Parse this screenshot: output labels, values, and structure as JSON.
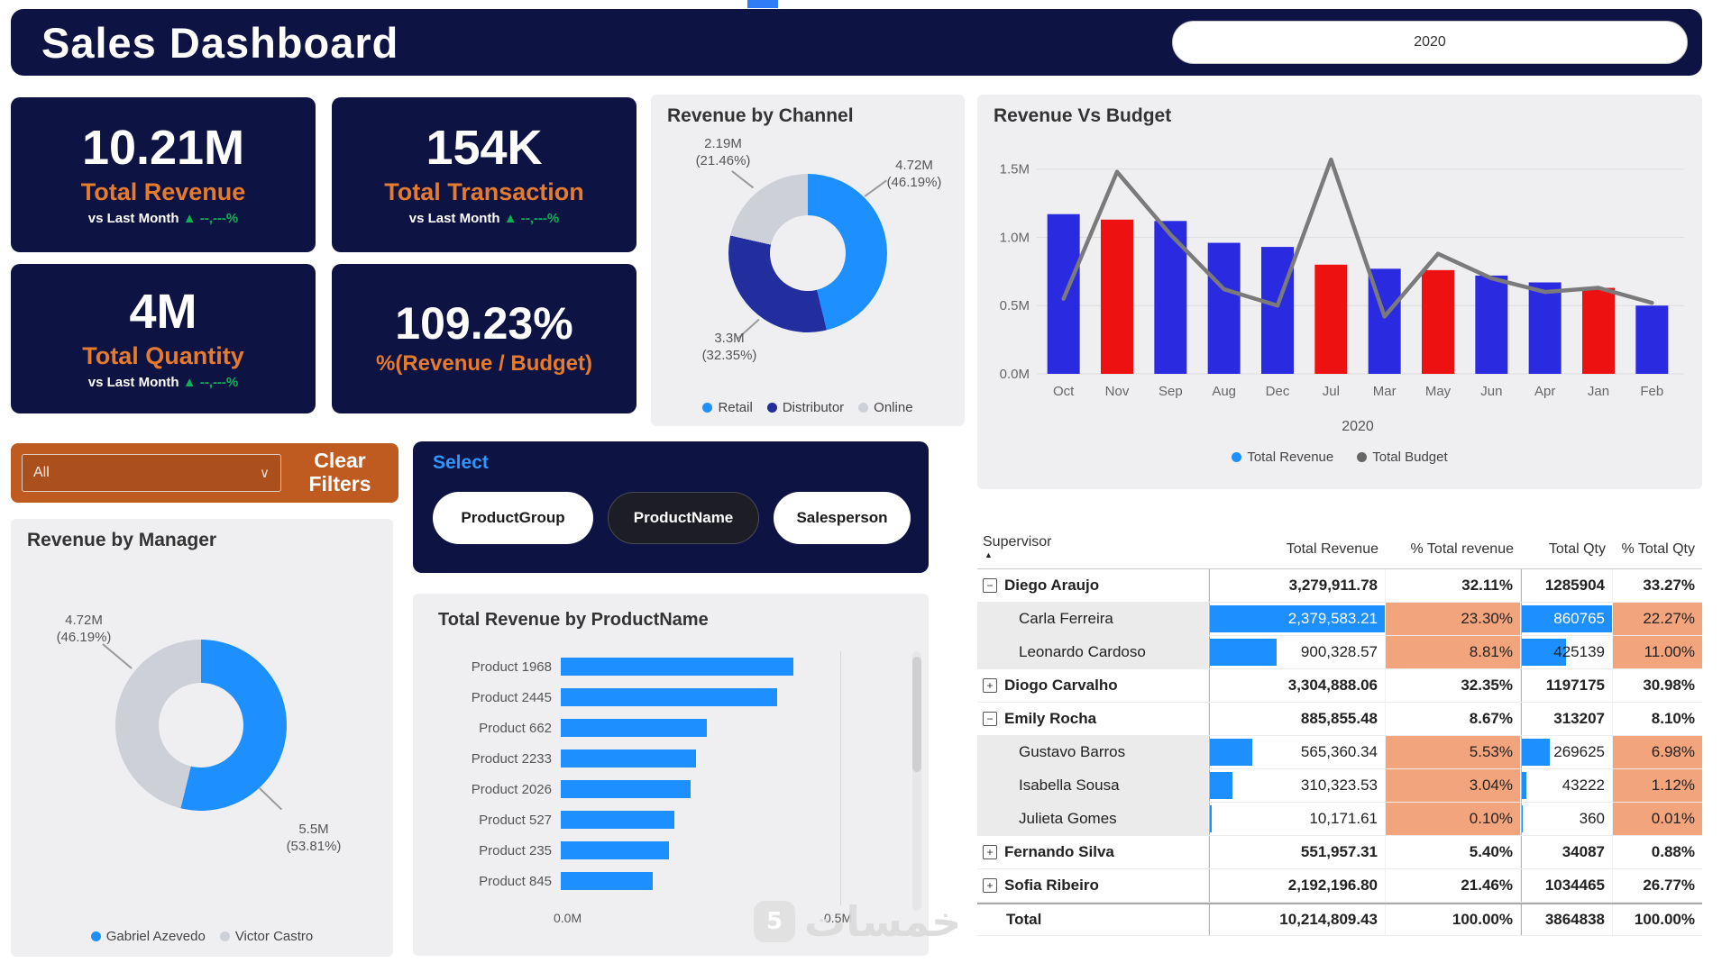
{
  "header": {
    "title": "Sales Dashboard",
    "year_filter": "2020"
  },
  "kpis": [
    {
      "value": "10.21M",
      "label": "Total Revenue",
      "compare": "vs Last Month",
      "delta_arrow": "▲",
      "delta": "--,---%"
    },
    {
      "value": "154K",
      "label": "Total Transaction",
      "compare": "vs Last Month",
      "delta_arrow": "▲",
      "delta": "--,---%"
    },
    {
      "value": "4M",
      "label": "Total Quantity",
      "compare": "vs Last Month",
      "delta_arrow": "▲",
      "delta": "--,---%"
    },
    {
      "value": "109.23%",
      "label": "%(Revenue / Budget)"
    }
  ],
  "filters": {
    "dropdown_value": "All",
    "dropdown_chevron": "∨",
    "clear_button": "Clear Filters",
    "select_title": "Select",
    "slicer_buttons": [
      {
        "label": "ProductGroup",
        "selected": false
      },
      {
        "label": "ProductName",
        "selected": true
      },
      {
        "label": "Salesperson",
        "selected": false
      }
    ]
  },
  "chart_data": [
    {
      "id": "revenue-by-channel",
      "type": "pie",
      "title": "Revenue by Channel",
      "labels": [
        "Retail",
        "Distributor",
        "Online"
      ],
      "values_m": [
        4.72,
        3.3,
        2.19
      ],
      "percents": [
        46.19,
        32.35,
        21.46
      ],
      "callouts": [
        "4.72M\n(46.19%)",
        "3.3M\n(32.35%)",
        "2.19M\n(21.46%)"
      ],
      "colors": [
        "#1e8fff",
        "#222e9e",
        "#cdd0d6"
      ]
    },
    {
      "id": "revenue-vs-budget",
      "type": "bar+line",
      "title": "Revenue Vs Budget",
      "categories": [
        "Oct",
        "Nov",
        "Sep",
        "Aug",
        "Dec",
        "Jul",
        "Mar",
        "May",
        "Jun",
        "Apr",
        "Jan",
        "Feb"
      ],
      "series": [
        {
          "name": "Total Revenue",
          "type": "bar",
          "values_m": [
            1.17,
            1.13,
            1.12,
            0.96,
            0.93,
            0.8,
            0.77,
            0.76,
            0.72,
            0.67,
            0.63,
            0.5
          ],
          "bar_colors": [
            "#2a2ae0",
            "#ee1111",
            "#2a2ae0",
            "#2a2ae0",
            "#2a2ae0",
            "#ee1111",
            "#2a2ae0",
            "#ee1111",
            "#2a2ae0",
            "#2a2ae0",
            "#ee1111",
            "#2a2ae0"
          ]
        },
        {
          "name": "Total Budget",
          "type": "line",
          "values_m": [
            0.55,
            1.48,
            1.02,
            0.62,
            0.5,
            1.57,
            0.42,
            0.88,
            0.7,
            0.6,
            0.63,
            0.52
          ],
          "color": "#7a7a7a"
        }
      ],
      "xlabel": "2020",
      "yticks": [
        "0.0M",
        "0.5M",
        "1.0M",
        "1.5M"
      ],
      "ylim_m": [
        0,
        1.65
      ],
      "legend": [
        "Total Revenue",
        "Total Budget"
      ],
      "legend_colors": [
        "#1e8fff",
        "#666666"
      ]
    },
    {
      "id": "revenue-by-manager",
      "type": "pie",
      "title": "Revenue by Manager",
      "labels": [
        "Gabriel Azevedo",
        "Victor Castro"
      ],
      "values_m": [
        5.5,
        4.72
      ],
      "percents": [
        53.81,
        46.19
      ],
      "callouts": [
        "5.5M\n(53.81%)",
        "4.72M\n(46.19%)"
      ],
      "colors": [
        "#1e8fff",
        "#cdd0d6"
      ]
    },
    {
      "id": "revenue-by-productname",
      "type": "bar",
      "title": "Total Revenue by ProductName",
      "categories": [
        "Product 1968",
        "Product 2445",
        "Product 662",
        "Product 2233",
        "Product 2026",
        "Product 527",
        "Product 235",
        "Product 845"
      ],
      "values_m": [
        0.43,
        0.4,
        0.27,
        0.25,
        0.24,
        0.21,
        0.2,
        0.17
      ],
      "xticks": [
        "0.0M",
        "0.5M"
      ],
      "xlim_m": [
        0,
        0.52
      ],
      "bar_color": "#1e8fff"
    }
  ],
  "table": {
    "columns": [
      "Supervisor",
      "Total Revenue",
      "% Total revenue",
      "Total Qty",
      "% Total Qty"
    ],
    "sort_indicator": "▲",
    "rows": [
      {
        "type": "group",
        "expand": "−",
        "name": "Diego Araujo",
        "revenue": "3,279,911.78",
        "pct_rev": "32.11%",
        "qty": "1285904",
        "pct_qty": "33.27%"
      },
      {
        "type": "child",
        "name": "Carla Ferreira",
        "revenue": "2,379,583.21",
        "pct_rev": "23.30%",
        "qty": "860765",
        "pct_qty": "22.27%",
        "rev_bar": 100,
        "qty_bar": 100
      },
      {
        "type": "child",
        "name": "Leonardo Cardoso",
        "revenue": "900,328.57",
        "pct_rev": "8.81%",
        "qty": "425139",
        "pct_qty": "11.00%",
        "rev_bar": 38,
        "qty_bar": 49
      },
      {
        "type": "group",
        "expand": "+",
        "name": "Diogo Carvalho",
        "revenue": "3,304,888.06",
        "pct_rev": "32.35%",
        "qty": "1197175",
        "pct_qty": "30.98%"
      },
      {
        "type": "group",
        "expand": "−",
        "name": "Emily Rocha",
        "revenue": "885,855.48",
        "pct_rev": "8.67%",
        "qty": "313207",
        "pct_qty": "8.10%"
      },
      {
        "type": "child",
        "name": "Gustavo Barros",
        "revenue": "565,360.34",
        "pct_rev": "5.53%",
        "qty": "269625",
        "pct_qty": "6.98%",
        "rev_bar": 24,
        "qty_bar": 31
      },
      {
        "type": "child",
        "name": "Isabella Sousa",
        "revenue": "310,323.53",
        "pct_rev": "3.04%",
        "qty": "43222",
        "pct_qty": "1.12%",
        "rev_bar": 13,
        "qty_bar": 5
      },
      {
        "type": "child",
        "name": "Julieta Gomes",
        "revenue": "10,171.61",
        "pct_rev": "0.10%",
        "qty": "360",
        "pct_qty": "0.01%",
        "rev_bar": 1,
        "qty_bar": 0.3
      },
      {
        "type": "group",
        "expand": "+",
        "name": "Fernando Silva",
        "revenue": "551,957.31",
        "pct_rev": "5.40%",
        "qty": "34087",
        "pct_qty": "0.88%"
      },
      {
        "type": "group",
        "expand": "+",
        "name": "Sofia Ribeiro",
        "revenue": "2,192,196.80",
        "pct_rev": "21.46%",
        "qty": "1034465",
        "pct_qty": "26.77%"
      },
      {
        "type": "total",
        "name": "Total",
        "revenue": "10,214,809.43",
        "pct_rev": "100.00%",
        "qty": "3864838",
        "pct_qty": "100.00%"
      }
    ]
  },
  "page": {
    "watermark": "خمسات",
    "watermark_badge": "5"
  }
}
